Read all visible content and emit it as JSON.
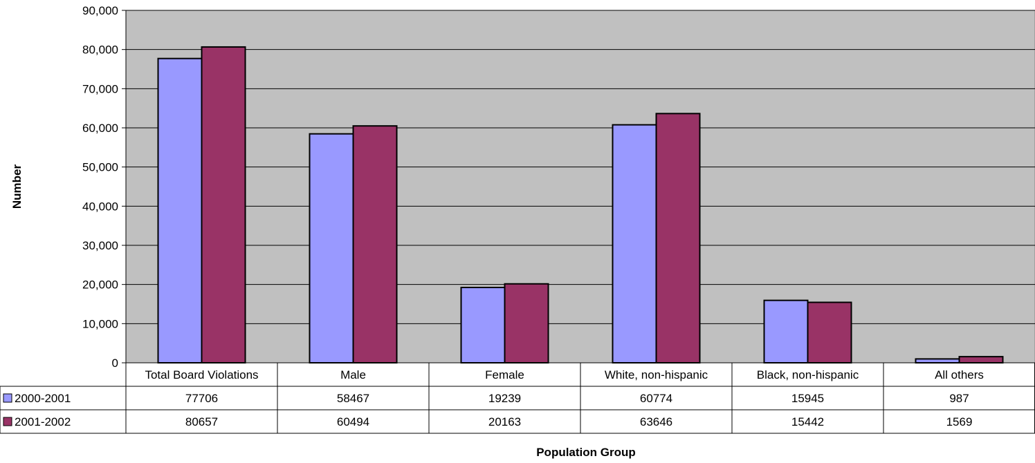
{
  "chart_data": {
    "type": "bar",
    "categories": [
      "Total Board Violations",
      "Male",
      "Female",
      "White, non-hispanic",
      "Black, non-hispanic",
      "All others"
    ],
    "series": [
      {
        "name": "2000-2001",
        "values": [
          77706,
          58467,
          19239,
          60774,
          15945,
          987
        ],
        "color": "#9999ff"
      },
      {
        "name": "2001-2002",
        "values": [
          80657,
          60494,
          20163,
          63646,
          15442,
          1569
        ],
        "color": "#993366"
      }
    ],
    "data_table": {
      "rows": [
        [
          "77706",
          "58467",
          "19239",
          "60774",
          "15945",
          "987"
        ],
        [
          "80657",
          "60494",
          "20163",
          "63646",
          "15442",
          "1569"
        ]
      ]
    },
    "ylim": [
      0,
      90000
    ],
    "y_ticks": [
      "0",
      "10,000",
      "20,000",
      "30,000",
      "40,000",
      "50,000",
      "60,000",
      "70,000",
      "80,000",
      "90,000"
    ],
    "ylabel": "Number",
    "xlabel": "Population Group",
    "grid": true,
    "plot_background": "#c0c0c0",
    "legend": "data-table"
  }
}
